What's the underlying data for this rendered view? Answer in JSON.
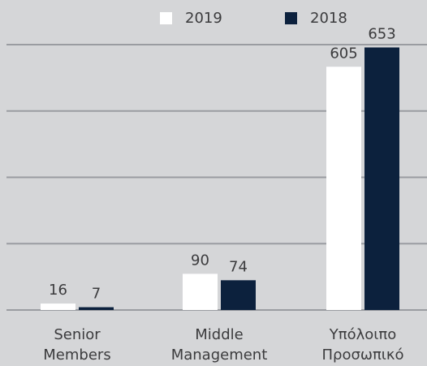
{
  "chart_data": {
    "type": "bar",
    "categories": [
      "Senior Members",
      "Middle Management",
      "Υπόλοιπο Προσωπικό"
    ],
    "series": [
      {
        "name": "2019",
        "color": "#ffffff",
        "values": [
          16,
          90,
          605
        ]
      },
      {
        "name": "2018",
        "color": "#0c213d",
        "values": [
          7,
          74,
          653
        ]
      }
    ],
    "ylim": [
      0,
      660
    ],
    "yticks": [
      0,
      165,
      330,
      495,
      660
    ],
    "grid": true,
    "legend": "top"
  }
}
